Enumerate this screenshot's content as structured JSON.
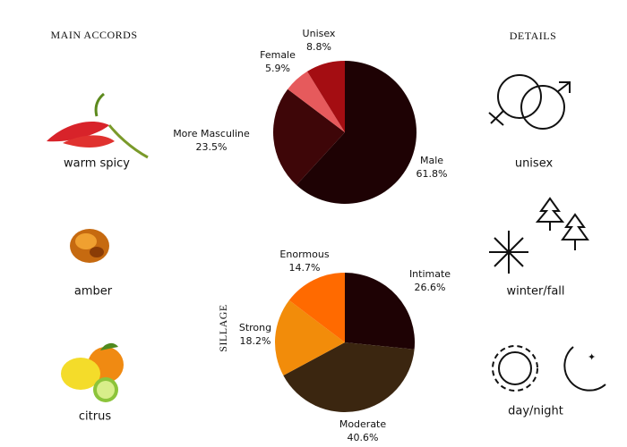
{
  "header": {
    "left": "MAIN ACCORDS",
    "right": "DETAILS"
  },
  "accords": [
    "warm spicy",
    "amber",
    "citrus"
  ],
  "details": [
    "unisex",
    "winter/fall",
    "day/night"
  ],
  "chart_data": [
    {
      "type": "pie",
      "categories": [
        "Male",
        "More Masculine",
        "Female",
        "Unisex"
      ],
      "values": [
        61.8,
        23.5,
        5.9,
        8.8
      ],
      "value_labels": [
        "61.8%",
        "23.5%",
        "5.9%",
        "8.8%"
      ],
      "colors": [
        "#1e0204",
        "#3e0608",
        "#e65a5c",
        "#a40d12"
      ]
    },
    {
      "type": "pie",
      "title": "SILLAGE",
      "categories": [
        "Intimate",
        "Moderate",
        "Strong",
        "Enormous"
      ],
      "values": [
        26.6,
        40.6,
        18.2,
        14.7
      ],
      "value_labels": [
        "26.6%",
        "40.6%",
        "18.2%",
        "14.7%"
      ],
      "colors": [
        "#1e0204",
        "#3b2610",
        "#f28c0a",
        "#ff6a00"
      ]
    }
  ]
}
